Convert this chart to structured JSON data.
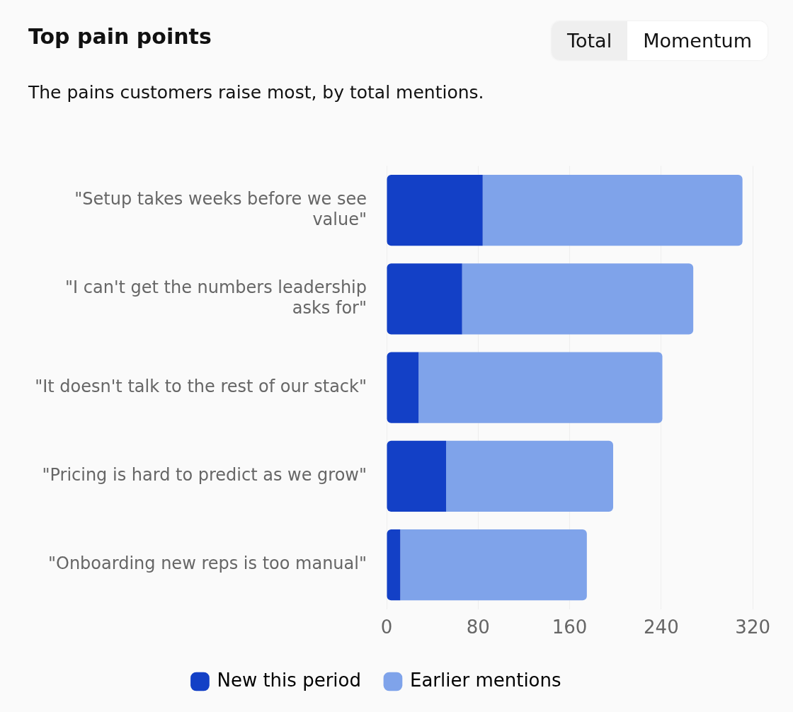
{
  "chart_data": {
    "type": "bar",
    "orientation": "horizontal",
    "stacked": true,
    "title": "Top pain points",
    "subtitle": "The pains customers raise most, by total mentions.",
    "annotations": [
      "Total",
      "Momentum"
    ],
    "categories": [
      "\"Setup takes weeks before we see value\"",
      "\"I can't get the numbers leadership asks for\"",
      "\"It doesn't talk to the rest of our stack\"",
      "\"Pricing is hard to predict as we grow\"",
      "\"Onboarding new reps is too manual\""
    ],
    "series": [
      {
        "name": "New this period",
        "color": "#1340c6",
        "values": [
          84,
          66,
          28,
          52,
          12
        ]
      },
      {
        "name": "Earlier mentions",
        "color": "#7fa3ea",
        "values": [
          227,
          202,
          213,
          146,
          163
        ]
      }
    ],
    "xlim": [
      0,
      320
    ],
    "xticks": [
      0,
      80,
      160,
      240,
      320
    ],
    "grid": "x",
    "legend": "bottom"
  }
}
